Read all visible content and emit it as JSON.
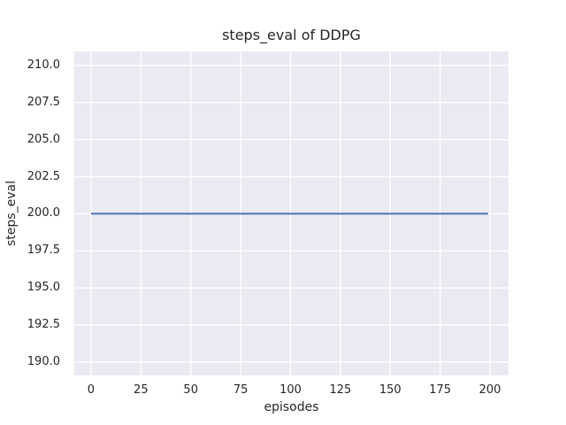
{
  "chart_data": {
    "type": "line",
    "title": "steps_eval of DDPG",
    "xlabel": "episodes",
    "ylabel": "steps_eval",
    "xlim": [
      -8.4,
      209.3
    ],
    "ylim": [
      189.1,
      210.95
    ],
    "xticks": [
      {
        "value": 0,
        "label": "0"
      },
      {
        "value": 25,
        "label": "25"
      },
      {
        "value": 50,
        "label": "50"
      },
      {
        "value": 75,
        "label": "75"
      },
      {
        "value": 100,
        "label": "100"
      },
      {
        "value": 125,
        "label": "125"
      },
      {
        "value": 150,
        "label": "150"
      },
      {
        "value": 175,
        "label": "175"
      },
      {
        "value": 200,
        "label": "200"
      }
    ],
    "yticks": [
      {
        "value": 190.0,
        "label": "190.0"
      },
      {
        "value": 192.5,
        "label": "192.5"
      },
      {
        "value": 195.0,
        "label": "195.0"
      },
      {
        "value": 197.5,
        "label": "197.5"
      },
      {
        "value": 200.0,
        "label": "200.0"
      },
      {
        "value": 202.5,
        "label": "202.5"
      },
      {
        "value": 205.0,
        "label": "205.0"
      },
      {
        "value": 207.5,
        "label": "207.5"
      },
      {
        "value": 210.0,
        "label": "210.0"
      }
    ],
    "grid": true,
    "legend_position": "none",
    "series": [
      {
        "x": [
          0,
          199
        ],
        "y": [
          200.0,
          200.0
        ],
        "color": "#4C72B0",
        "linewidth": 2
      }
    ],
    "colors": {
      "figure_background": "#FFFFFF",
      "axes_background": "#EAEAF2",
      "gridline": "#FFFFFF",
      "text": "#262626"
    }
  }
}
